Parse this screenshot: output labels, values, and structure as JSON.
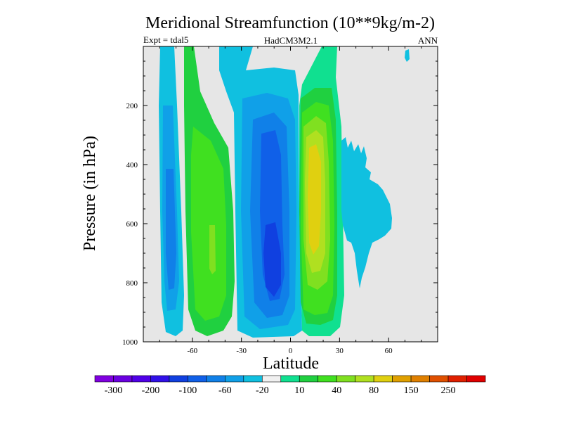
{
  "chart_data": {
    "type": "heatmap",
    "title": "Meridional Streamfunction (10**9kg/m-2)",
    "left_label": "Expt = tdal5",
    "center_label": "HadCM3M2.1",
    "right_label": "ANN",
    "xlabel": "Latitude",
    "ylabel": "Pressure (in hPa)",
    "xlim": [
      -90,
      90
    ],
    "ylim": [
      1000,
      0
    ],
    "xticks": [
      "-60",
      "-30",
      "0",
      "30",
      "60"
    ],
    "xtick_values": [
      -60,
      -30,
      0,
      30,
      60
    ],
    "yticks": [
      "200",
      "400",
      "600",
      "800",
      "1000"
    ],
    "ytick_values": [
      200,
      400,
      600,
      800,
      1000
    ],
    "missing_color": "#e6e6e6",
    "colorbar": {
      "colors": [
        "#8000e0",
        "#6a00e0",
        "#5000e8",
        "#3010e8",
        "#1040e0",
        "#1060e8",
        "#1080e8",
        "#10a0e8",
        "#10c0e0",
        "#f0f0f0",
        "#10e090",
        "#20d040",
        "#40e020",
        "#80e020",
        "#b0e020",
        "#e0d010",
        "#e0a000",
        "#e08000",
        "#e05000",
        "#e02000",
        "#e00000"
      ],
      "labels": [
        "-300",
        "-200",
        "-100",
        "-60",
        "-20",
        "10",
        "40",
        "80",
        "150",
        "250"
      ]
    },
    "features": [
      {
        "name": "southern-ferrel-cell-core",
        "lat": -50,
        "pressure": 700,
        "value": 40,
        "sign": "positive"
      },
      {
        "name": "southern-hadley-cell-core",
        "lat": -15,
        "pressure": 700,
        "value": -100,
        "sign": "negative"
      },
      {
        "name": "northern-hadley-cell-core",
        "lat": 12,
        "pressure": 450,
        "value": 100,
        "sign": "positive"
      },
      {
        "name": "polar-cell-south",
        "lat": -75,
        "pressure": 600,
        "value": -20,
        "sign": "negative"
      },
      {
        "name": "northern-ferrel-cell",
        "lat": 45,
        "pressure": 500,
        "value": -20,
        "sign": "negative"
      }
    ]
  }
}
